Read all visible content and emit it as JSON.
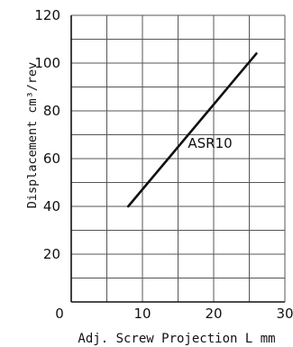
{
  "chart_data": {
    "type": "line",
    "title": "",
    "xlabel": "Adj. Screw Projection  L mm",
    "ylabel": "Displacement cm³/rev",
    "xlim": [
      0,
      30
    ],
    "ylim": [
      0,
      120
    ],
    "x_ticks": [
      0,
      10,
      20,
      30
    ],
    "y_ticks": [
      20,
      40,
      60,
      80,
      100,
      120
    ],
    "grid": true,
    "legend": "none",
    "series": [
      {
        "name": "ASR10",
        "x": [
          8,
          26
        ],
        "y": [
          40,
          104
        ]
      }
    ],
    "annotations": [
      {
        "text": "ASR10",
        "x": 19.5,
        "y": 64.5
      }
    ]
  },
  "colors": {
    "line": "#111111",
    "grid": "#555555",
    "axis": "#111111",
    "background": "#ffffff"
  }
}
